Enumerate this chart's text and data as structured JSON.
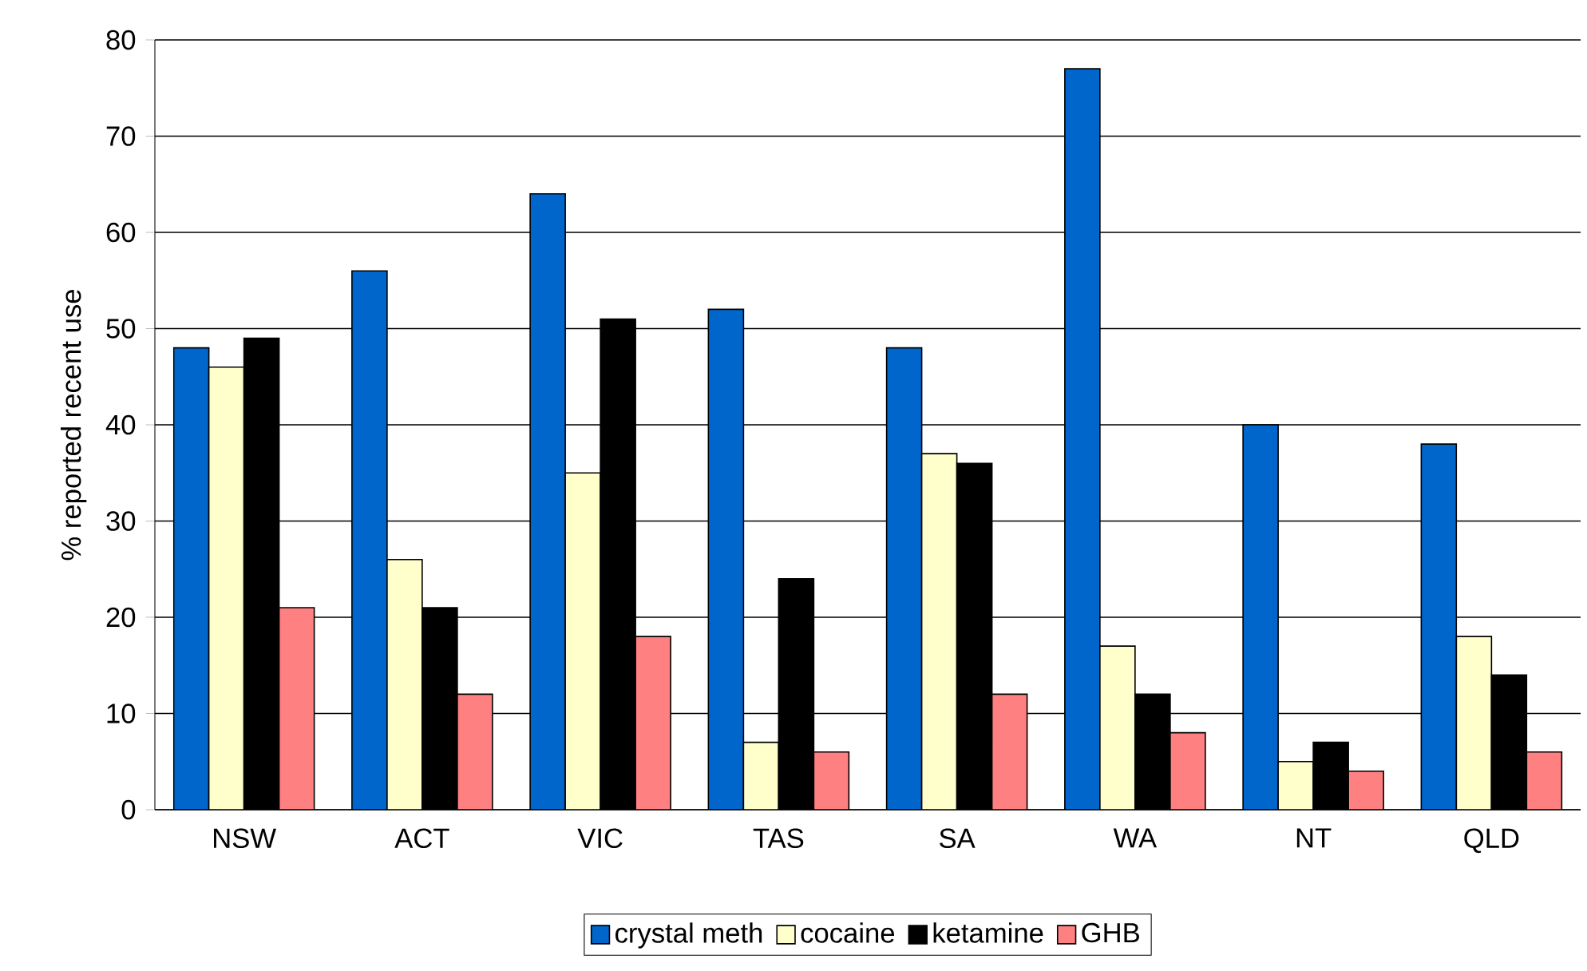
{
  "chart_data": {
    "type": "bar",
    "ylabel": "% reported recent use",
    "categories": [
      "NSW",
      "ACT",
      "VIC",
      "TAS",
      "SA",
      "WA",
      "NT",
      "QLD"
    ],
    "series": [
      {
        "name": "crystal meth",
        "color": "#0066cc",
        "values": [
          48,
          56,
          64,
          52,
          48,
          77,
          40,
          38
        ]
      },
      {
        "name": "cocaine",
        "color": "#ffffcc",
        "values": [
          46,
          26,
          35,
          7,
          37,
          17,
          5,
          18
        ]
      },
      {
        "name": "ketamine",
        "color": "#000000",
        "values": [
          49,
          21,
          51,
          24,
          36,
          12,
          7,
          14
        ]
      },
      {
        "name": "GHB",
        "color": "#ff8080",
        "values": [
          21,
          12,
          18,
          6,
          12,
          8,
          4,
          6
        ]
      }
    ],
    "ylim": [
      0,
      80
    ],
    "yticks": [
      0,
      10,
      20,
      30,
      40,
      50,
      60,
      70,
      80
    ],
    "grid": "y",
    "legend": "bottom"
  }
}
